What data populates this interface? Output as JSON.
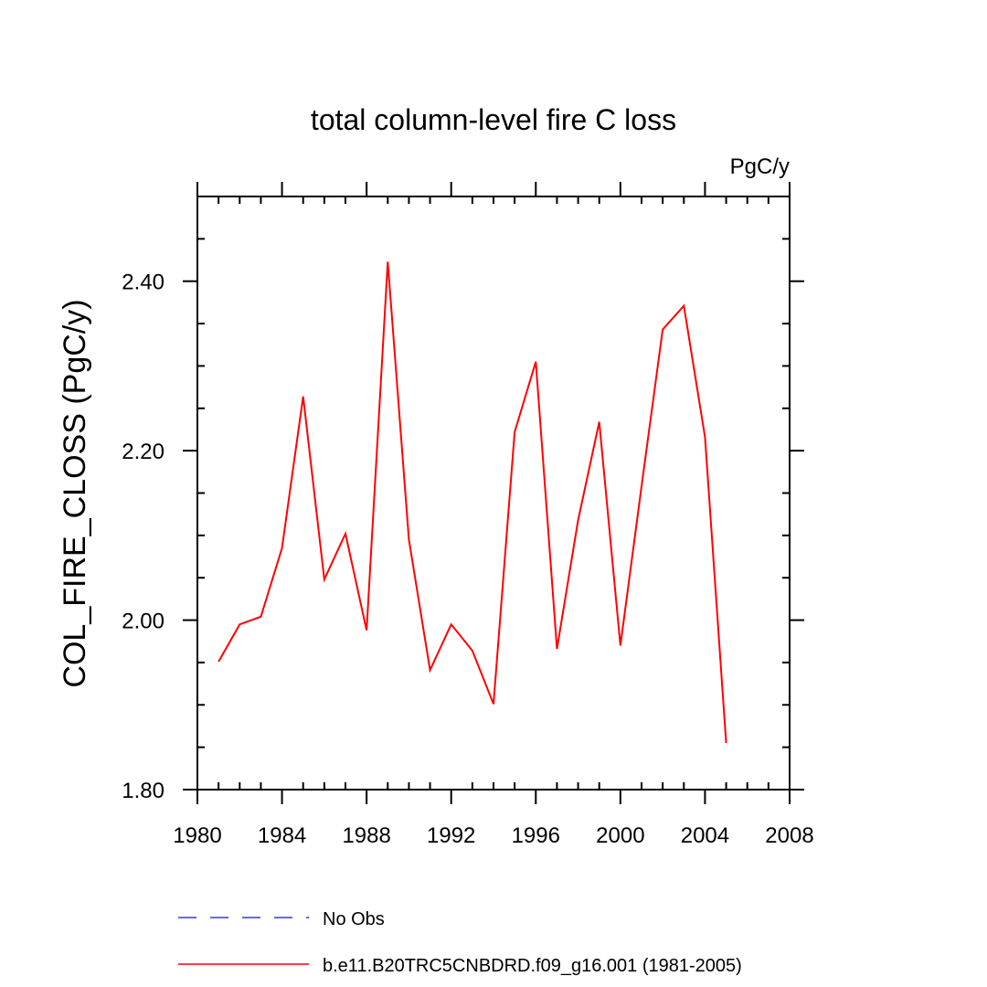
{
  "chart_data": {
    "type": "line",
    "title": "total column-level fire C loss",
    "units_label": "PgC/y",
    "ylabel": "COL_FIRE_CLOSS  (PgC/y)",
    "xlabel": "",
    "xlim": [
      1980,
      2008
    ],
    "ylim": [
      1.8,
      2.5
    ],
    "x_ticks": [
      1980,
      1984,
      1988,
      1992,
      1996,
      2000,
      2004,
      2008
    ],
    "x_tick_labels": [
      "1980",
      "1984",
      "1988",
      "1992",
      "1996",
      "2000",
      "2004",
      "2008"
    ],
    "x_minor_step": 1,
    "y_ticks": [
      1.8,
      2.0,
      2.2,
      2.4
    ],
    "y_tick_labels": [
      "1.80",
      "2.00",
      "2.20",
      "2.40"
    ],
    "y_minor_step": 0.05,
    "grid": false,
    "legend_position": "bottom",
    "series": [
      {
        "name": "No Obs",
        "color": "#3333ff",
        "dash": "dashed",
        "x": [],
        "values": []
      },
      {
        "name": "b.e11.B20TRC5CNBDRD.f09_g16.001 (1981-2005)",
        "color": "#ff0000",
        "dash": "solid",
        "x": [
          1981,
          1982,
          1983,
          1984,
          1985,
          1986,
          1987,
          1988,
          1989,
          1990,
          1991,
          1992,
          1993,
          1994,
          1995,
          1996,
          1997,
          1998,
          1999,
          2000,
          2001,
          2002,
          2003,
          2004,
          2005
        ],
        "values": [
          1.951,
          1.995,
          2.004,
          2.085,
          2.264,
          2.048,
          2.102,
          1.988,
          2.423,
          2.095,
          1.941,
          1.995,
          1.964,
          1.901,
          2.222,
          2.305,
          1.966,
          2.118,
          2.234,
          1.97,
          2.158,
          2.343,
          2.371,
          2.216,
          1.855
        ]
      }
    ]
  }
}
